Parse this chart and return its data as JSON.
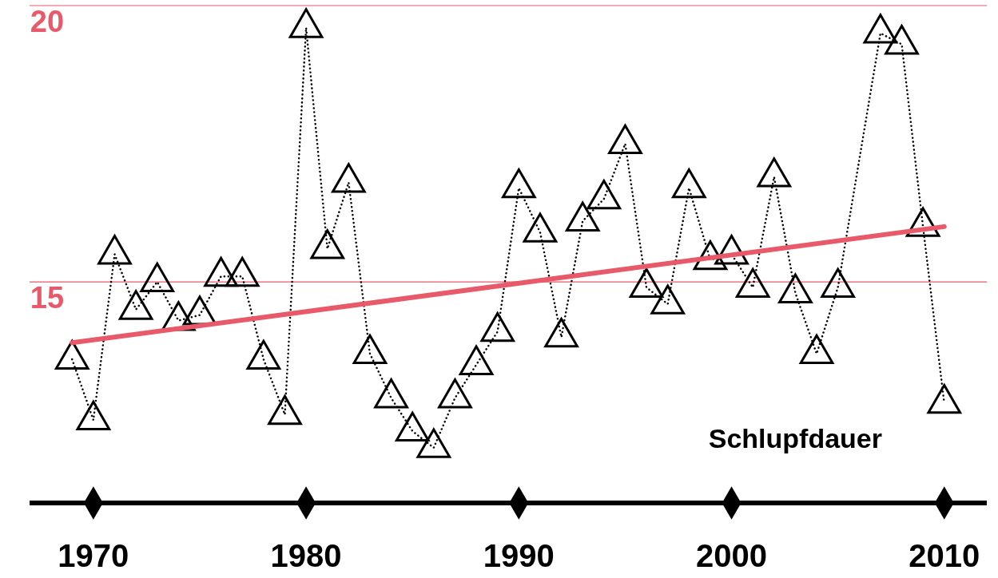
{
  "chart_data": {
    "type": "line",
    "xlim": [
      1967,
      2012
    ],
    "xticks": [
      1970,
      1980,
      1990,
      2000,
      2010
    ],
    "ylim": [
      11,
      20
    ],
    "yticks": [
      15,
      20
    ],
    "ref_lines": [
      {
        "axis": "y",
        "value": 15,
        "color": "#e85a6a"
      },
      {
        "axis": "y",
        "value": 20,
        "color": "#e85a6a"
      }
    ],
    "series": [
      {
        "name": "Schlupfdauer",
        "color": "#000000",
        "marker": "triangle",
        "line_style": "dotted",
        "x": [
          1969,
          1970,
          1971,
          1972,
          1973,
          1974,
          1975,
          1976,
          1977,
          1978,
          1979,
          1980,
          1981,
          1982,
          1983,
          1984,
          1985,
          1986,
          1987,
          1988,
          1989,
          1990,
          1991,
          1992,
          1993,
          1994,
          1995,
          1996,
          1997,
          1998,
          1999,
          2000,
          2001,
          2002,
          2003,
          2004,
          2005,
          2007,
          2008,
          2009,
          2010
        ],
        "values": [
          13.6,
          12.5,
          15.5,
          14.5,
          15.0,
          14.3,
          14.4,
          15.1,
          15.1,
          13.6,
          12.6,
          19.6,
          15.6,
          16.8,
          13.7,
          12.9,
          12.3,
          12.0,
          12.9,
          13.5,
          14.1,
          16.7,
          15.9,
          14.0,
          16.1,
          16.5,
          17.5,
          14.9,
          14.6,
          16.7,
          15.4,
          15.5,
          14.9,
          16.9,
          14.8,
          13.7,
          14.9,
          19.5,
          19.3,
          16.0,
          12.8
        ]
      },
      {
        "color": "#e85a6a",
        "marker": "none",
        "line_style": "solid",
        "x": [
          1969,
          2010
        ],
        "values": [
          13.9,
          16.0
        ]
      }
    ]
  }
}
